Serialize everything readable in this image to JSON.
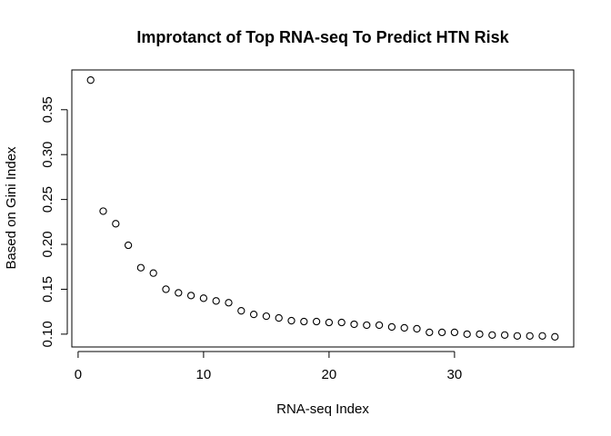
{
  "chart_data": {
    "type": "scatter",
    "title": "Improtanct of Top RNA-seq To Predict HTN Risk",
    "xlabel": "RNA-seq Index",
    "ylabel": "Based on Gini Index",
    "x": [
      1,
      2,
      3,
      4,
      5,
      6,
      7,
      8,
      9,
      10,
      11,
      12,
      13,
      14,
      15,
      16,
      17,
      18,
      19,
      20,
      21,
      22,
      23,
      24,
      25,
      26,
      27,
      28,
      29,
      30,
      31,
      32,
      33,
      34,
      35,
      36,
      37,
      38
    ],
    "y": [
      0.383,
      0.237,
      0.223,
      0.199,
      0.174,
      0.168,
      0.15,
      0.146,
      0.143,
      0.14,
      0.137,
      0.135,
      0.126,
      0.122,
      0.12,
      0.118,
      0.115,
      0.114,
      0.114,
      0.113,
      0.113,
      0.111,
      0.11,
      0.11,
      0.108,
      0.107,
      0.106,
      0.102,
      0.102,
      0.102,
      0.1,
      0.1,
      0.099,
      0.099,
      0.098,
      0.098,
      0.098,
      0.097
    ],
    "xlim": [
      -0.5,
      39.5
    ],
    "ylim": [
      0.0857,
      0.3943
    ],
    "xticks": [
      0,
      10,
      20,
      30
    ],
    "yticks": [
      0.1,
      0.15,
      0.2,
      0.25,
      0.3,
      0.35
    ],
    "xtick_labels": [
      "0",
      "10",
      "20",
      "30"
    ],
    "ytick_labels": [
      "0.10",
      "0.15",
      "0.20",
      "0.25",
      "0.30",
      "0.35"
    ],
    "marker": "open-circle",
    "marker_color": "#000000",
    "grid": false,
    "legend": "none"
  }
}
